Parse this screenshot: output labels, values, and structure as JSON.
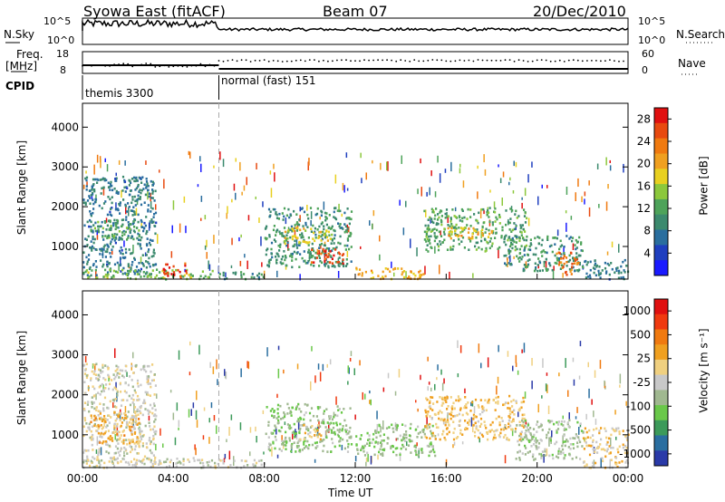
{
  "header": {
    "station": "Syowa East (fitACF)",
    "beam": "Beam 07",
    "date": "20/Dec/2010"
  },
  "top_panels": {
    "nsky_label": "N.Sky",
    "nsky_ticks": [
      "10^5",
      "10^0"
    ],
    "nsearch_label": "N.Search",
    "nsearch_ticks": [
      "10^5",
      "10^0"
    ],
    "freq_label": "Freq.",
    "freq_unit": "[MHz]",
    "freq_ticks": [
      "18",
      "8"
    ],
    "nave_label": "Nave",
    "nave_ticks": [
      "60",
      "0"
    ],
    "cpid_label": "CPID",
    "cpid_segments": [
      {
        "name": "themis 3300",
        "start_hour": 0,
        "end_hour": 6
      },
      {
        "name": "normal (fast) 151",
        "start_hour": 6,
        "end_hour": 24
      }
    ]
  },
  "colors": {
    "power_scale": [
      "#1a1aff",
      "#1f3fbf",
      "#2a6e9e",
      "#3c8a6e",
      "#4ea35a",
      "#8cc83c",
      "#e8d020",
      "#f0a020",
      "#f07a10",
      "#e84a10",
      "#e01010"
    ],
    "velocity_scale": [
      "#e01010",
      "#f03a10",
      "#f07a10",
      "#f0a020",
      "#f0d080",
      "#c8c8c8",
      "#a0b890",
      "#6ac84a",
      "#3c9a5a",
      "#2a6ea0",
      "#2a3aa8"
    ]
  },
  "chart_data": [
    {
      "type": "heatmap",
      "title": "Power",
      "xlabel": "Time UT",
      "ylabel": "Slant Range [km]",
      "x_ticks": [
        "00:00",
        "04:00",
        "08:00",
        "12:00",
        "16:00",
        "20:00",
        "00:00"
      ],
      "xlim_hours": [
        0,
        24
      ],
      "y_ticks": [
        1000,
        2000,
        3000,
        4000
      ],
      "ylim": [
        180,
        4600
      ],
      "colorbar": {
        "label": "Power [dB]",
        "ticks": [
          4,
          8,
          12,
          16,
          20,
          24,
          28
        ],
        "range": [
          0,
          30
        ]
      },
      "echo_regions": [
        {
          "t0": 0.0,
          "t1": 3.2,
          "r0": 300,
          "r1": 2800,
          "value": 8
        },
        {
          "t0": 0.3,
          "t1": 2.5,
          "r0": 1200,
          "r1": 1700,
          "value": 12
        },
        {
          "t0": 0.0,
          "t1": 6.0,
          "r0": 200,
          "r1": 450,
          "value": 14
        },
        {
          "t0": 3.5,
          "t1": 4.6,
          "r0": 200,
          "r1": 600,
          "value": 26
        },
        {
          "t0": 6.0,
          "t1": 8.0,
          "r0": 200,
          "r1": 400,
          "value": 10
        },
        {
          "t0": 8.0,
          "t1": 11.8,
          "r0": 500,
          "r1": 2000,
          "value": 10
        },
        {
          "t0": 8.8,
          "t1": 11.0,
          "r0": 1100,
          "r1": 1500,
          "value": 18
        },
        {
          "t0": 10.0,
          "t1": 11.5,
          "r0": 600,
          "r1": 1000,
          "value": 26
        },
        {
          "t0": 12.0,
          "t1": 15.0,
          "r0": 200,
          "r1": 500,
          "value": 20
        },
        {
          "t0": 15.0,
          "t1": 19.5,
          "r0": 900,
          "r1": 2000,
          "value": 12
        },
        {
          "t0": 16.0,
          "t1": 18.0,
          "r0": 1200,
          "r1": 1500,
          "value": 20
        },
        {
          "t0": 18.5,
          "t1": 22.0,
          "r0": 400,
          "r1": 1300,
          "value": 10
        },
        {
          "t0": 20.8,
          "t1": 21.8,
          "r0": 300,
          "r1": 900,
          "value": 24
        },
        {
          "t0": 22.0,
          "t1": 24.0,
          "r0": 200,
          "r1": 700,
          "value": 8
        }
      ]
    },
    {
      "type": "heatmap",
      "title": "Velocity",
      "xlabel": "Time UT",
      "ylabel": "Slant Range [km]",
      "x_ticks": [
        "00:00",
        "04:00",
        "08:00",
        "12:00",
        "16:00",
        "20:00",
        "00:00"
      ],
      "xlim_hours": [
        0,
        24
      ],
      "y_ticks": [
        1000,
        2000,
        3000,
        4000
      ],
      "ylim": [
        180,
        4600
      ],
      "colorbar": {
        "label": "Velocity [m s⁻¹]",
        "ticks": [
          1000,
          500,
          25,
          -25,
          -100,
          -500,
          -1000
        ],
        "range": [
          -1250,
          1250
        ]
      },
      "echo_regions": [
        {
          "t0": 0.0,
          "t1": 3.2,
          "r0": 300,
          "r1": 2800,
          "value": 15
        },
        {
          "t0": 0.3,
          "t1": 2.5,
          "r0": 800,
          "r1": 1600,
          "value": 400
        },
        {
          "t0": 0.0,
          "t1": 6.0,
          "r0": 200,
          "r1": 450,
          "value": 0
        },
        {
          "t0": 6.0,
          "t1": 8.0,
          "r0": 200,
          "r1": 400,
          "value": 0
        },
        {
          "t0": 8.0,
          "t1": 11.8,
          "r0": 600,
          "r1": 1800,
          "value": -300
        },
        {
          "t0": 9.5,
          "t1": 10.5,
          "r0": 900,
          "r1": 1300,
          "value": 300
        },
        {
          "t0": 12.0,
          "t1": 15.5,
          "r0": 500,
          "r1": 1300,
          "value": -300
        },
        {
          "t0": 15.0,
          "t1": 19.5,
          "r0": 900,
          "r1": 2000,
          "value": 300
        },
        {
          "t0": 19.0,
          "t1": 22.0,
          "r0": 400,
          "r1": 1400,
          "value": -200
        },
        {
          "t0": 22.0,
          "t1": 24.0,
          "r0": 200,
          "r1": 1200,
          "value": 200
        }
      ]
    }
  ]
}
